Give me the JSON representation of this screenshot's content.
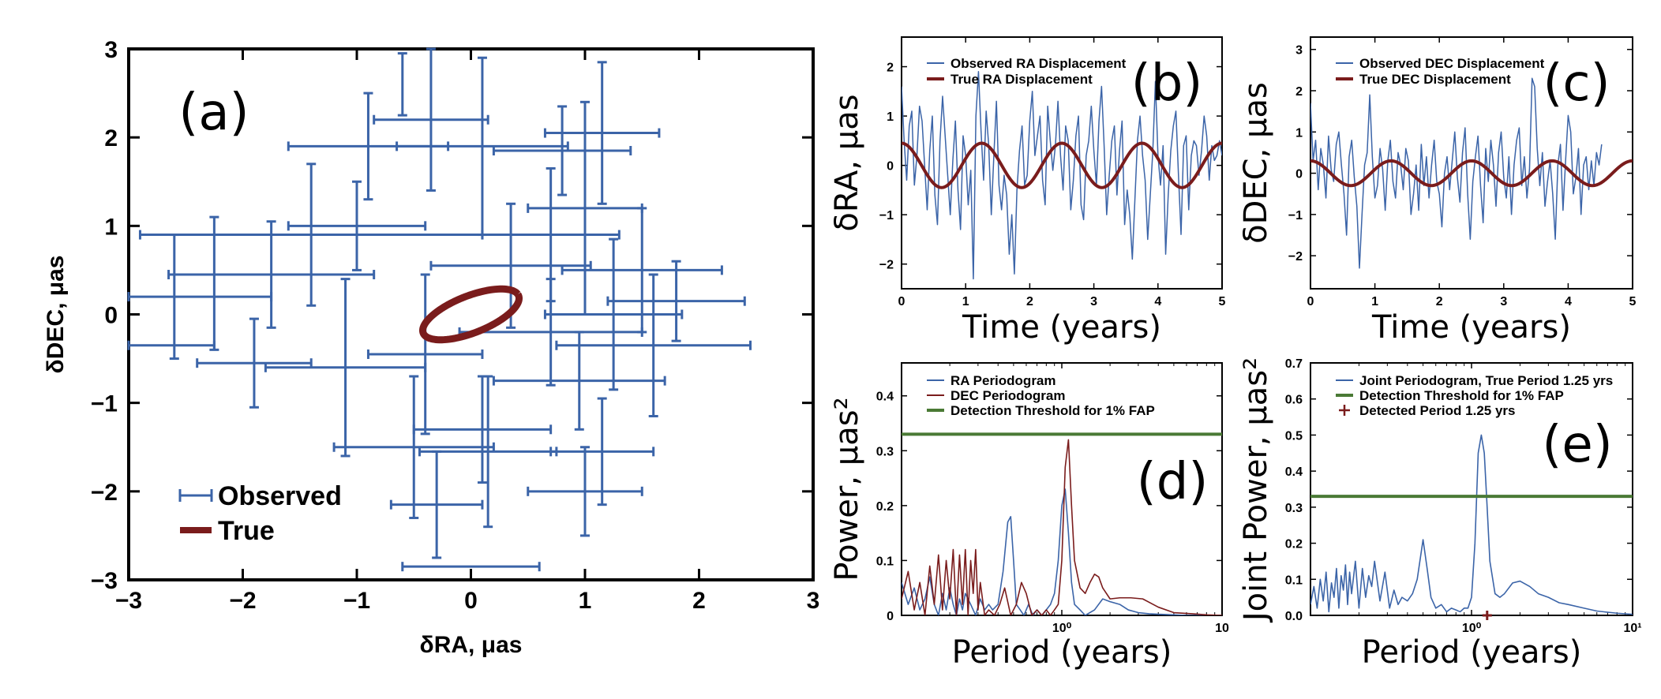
{
  "colors": {
    "observed": "#3b64a8",
    "true": "#7a1c1c",
    "threshold": "#4a7a35",
    "axis": "#000000"
  },
  "chart_data": [
    {
      "id": "a",
      "type": "scatter",
      "tag": "(a)",
      "xlabel": "δRA, μas",
      "ylabel": "δDEC, μas",
      "xlim": [
        -3,
        3
      ],
      "ylim": [
        -3,
        3
      ],
      "xticks": [
        -3,
        -2,
        -1,
        0,
        1,
        2,
        3
      ],
      "yticks": [
        -3,
        -2,
        -1,
        0,
        1,
        2,
        3
      ],
      "xtick_labels": [
        "−3",
        "−2",
        "−1",
        "0",
        "1",
        "2",
        "3"
      ],
      "ytick_labels": [
        "−3",
        "−2",
        "−1",
        "0",
        "1",
        "2",
        "3"
      ],
      "legend": [
        "Observed",
        "True"
      ],
      "true_ellipse": {
        "center": [
          0,
          0
        ],
        "semi_major": 0.47,
        "semi_minor": 0.2,
        "angle_deg": 29
      },
      "observed_points": [
        {
          "x": -2.6,
          "y": 0.2,
          "xerr": 0.85,
          "yerr": 0.7
        },
        {
          "x": -2.75,
          "y": -0.35,
          "xerr": 0.5,
          "yerr": 0.0
        },
        {
          "x": -1.4,
          "y": 0.9,
          "xerr": 1.5,
          "yerr": 0.8
        },
        {
          "x": -1.0,
          "y": 1.0,
          "xerr": 0.6,
          "yerr": 0.5
        },
        {
          "x": -1.75,
          "y": 0.45,
          "xerr": 0.9,
          "yerr": 0.6
        },
        {
          "x": -1.1,
          "y": -0.6,
          "xerr": 0.7,
          "yerr": 1.0
        },
        {
          "x": -0.9,
          "y": 1.9,
          "xerr": 0.7,
          "yerr": 0.6
        },
        {
          "x": -0.6,
          "y": 2.6,
          "xerr": 0.0,
          "yerr": 0.35
        },
        {
          "x": -0.35,
          "y": 2.2,
          "xerr": 0.5,
          "yerr": 0.8
        },
        {
          "x": -0.4,
          "y": -0.45,
          "xerr": 0.5,
          "yerr": 0.9
        },
        {
          "x": -0.5,
          "y": -1.5,
          "xerr": 0.7,
          "yerr": 0.8
        },
        {
          "x": -0.3,
          "y": -2.15,
          "xerr": 0.4,
          "yerr": 0.6
        },
        {
          "x": 0.0,
          "y": -2.85,
          "xerr": 0.6,
          "yerr": 0.0
        },
        {
          "x": 0.1,
          "y": 1.9,
          "xerr": 0.75,
          "yerr": 1.0
        },
        {
          "x": 0.1,
          "y": -1.3,
          "xerr": 0.6,
          "yerr": 0.6
        },
        {
          "x": 0.15,
          "y": -1.55,
          "xerr": 0.6,
          "yerr": 0.85
        },
        {
          "x": 0.35,
          "y": 0.55,
          "xerr": 0.7,
          "yerr": 0.7
        },
        {
          "x": 0.7,
          "y": 0.9,
          "xerr": 0.6,
          "yerr": 0.75
        },
        {
          "x": 0.7,
          "y": -0.2,
          "xerr": 0.8,
          "yerr": 0.6
        },
        {
          "x": 0.8,
          "y": 1.85,
          "xerr": 0.6,
          "yerr": 0.5
        },
        {
          "x": 0.95,
          "y": -0.75,
          "xerr": 0.75,
          "yerr": 0.55
        },
        {
          "x": 1.0,
          "y": 1.2,
          "xerr": 0.5,
          "yerr": 1.2
        },
        {
          "x": 1.0,
          "y": -2.0,
          "xerr": 0.5,
          "yerr": 0.5
        },
        {
          "x": 1.15,
          "y": -1.55,
          "xerr": 0.45,
          "yerr": 0.6
        },
        {
          "x": 1.25,
          "y": 0.0,
          "xerr": 0.6,
          "yerr": 0.85
        },
        {
          "x": 1.15,
          "y": 2.05,
          "xerr": 0.5,
          "yerr": 0.8
        },
        {
          "x": 1.5,
          "y": 0.5,
          "xerr": 0.7,
          "yerr": 0.7
        },
        {
          "x": 1.6,
          "y": -0.35,
          "xerr": 0.85,
          "yerr": 0.8
        },
        {
          "x": 1.8,
          "y": 0.15,
          "xerr": 0.6,
          "yerr": 0.45
        },
        {
          "x": -1.9,
          "y": -0.55,
          "xerr": 0.5,
          "yerr": 0.5
        },
        {
          "x": -2.25,
          "y": 0.35,
          "xerr": 0.0,
          "yerr": 0.75
        }
      ]
    },
    {
      "id": "b",
      "type": "line",
      "tag": "(b)",
      "xlabel": "Time (years)",
      "ylabel": "δRA, μas",
      "xlim": [
        0,
        5
      ],
      "ylim": [
        -2.5,
        2.6
      ],
      "xticks": [
        0,
        1,
        2,
        3,
        4,
        5
      ],
      "yticks": [
        -2,
        -1,
        0,
        1,
        2
      ],
      "xtick_labels": [
        "0",
        "1",
        "2",
        "3",
        "4",
        "5"
      ],
      "ytick_labels": [
        "−2",
        "−1",
        "0",
        "1",
        "2"
      ],
      "series": [
        {
          "name": "Observed RA Displacement",
          "color": "observed",
          "x_start": 0,
          "x_step": 0.04,
          "values": [
            1.6,
            0.5,
            -0.3,
            0.8,
            1.1,
            -0.4,
            0.2,
            1.2,
            0.9,
            0.0,
            -0.9,
            0.3,
            1.0,
            -0.6,
            -1.2,
            0.5,
            1.4,
            0.6,
            -0.2,
            -1.0,
            0.1,
            0.9,
            -0.5,
            -1.3,
            0.6,
            0.2,
            -0.8,
            -0.1,
            -2.3,
            1.0,
            1.9,
            0.7,
            -0.3,
            1.1,
            0.4,
            -1.0,
            0.2,
            1.3,
            -0.4,
            -0.9,
            -0.2,
            -0.6,
            -1.8,
            -1.0,
            -2.2,
            -0.5,
            0.3,
            0.8,
            -0.4,
            -0.2,
            0.9,
            1.5,
            0.2,
            0.6,
            1.0,
            -0.3,
            -0.8,
            1.2,
            0.5,
            -0.1,
            0.4,
            1.3,
            0.2,
            -0.5,
            0.8,
            0.5,
            -0.9,
            -0.3,
            0.6,
            1.0,
            -0.8,
            -1.1,
            0.2,
            0.5,
            1.2,
            0.3,
            -0.4,
            0.9,
            1.6,
            0.4,
            -1.0,
            -0.2,
            0.5,
            0.8,
            -0.6,
            0.3,
            0.9,
            -1.2,
            -0.5,
            -1.0,
            -1.9,
            -0.7,
            0.5,
            1.0,
            0.2,
            -0.3,
            -1.5,
            -0.6,
            0.3,
            1.7,
            0.2,
            -0.4,
            0.4,
            -1.8,
            -0.6,
            0.3,
            0.8,
            1.1,
            -0.2,
            -1.4,
            0.4,
            0.6,
            -0.9,
            0.2,
            0.5,
            0.4,
            -0.2,
            0.3,
            1.0,
            0.6,
            -0.3,
            0.4,
            0.1,
            0.2,
            0.5,
            0.2
          ]
        },
        {
          "name": "True RA Displacement",
          "color": "true",
          "amplitude": 0.45,
          "period": 1.25,
          "phase": 1.571
        }
      ]
    },
    {
      "id": "c",
      "type": "line",
      "tag": "(c)",
      "xlabel": "Time (years)",
      "ylabel": "δDEC, μas",
      "xlim": [
        0,
        5
      ],
      "ylim": [
        -2.8,
        3.3
      ],
      "xticks": [
        0,
        1,
        2,
        3,
        4,
        5
      ],
      "yticks": [
        -2,
        -1,
        0,
        1,
        2,
        3
      ],
      "xtick_labels": [
        "0",
        "1",
        "2",
        "3",
        "4",
        "5"
      ],
      "ytick_labels": [
        "−2",
        "−1",
        "0",
        "1",
        "2",
        "3"
      ],
      "series": [
        {
          "name": "Observed DEC Displacement",
          "color": "observed",
          "x_start": 0,
          "x_step": 0.04,
          "values": [
            1.7,
            0.3,
            0.8,
            -0.4,
            0.6,
            0.2,
            -0.6,
            0.9,
            0.1,
            -0.2,
            0.7,
            1.0,
            0.2,
            -0.5,
            -1.5,
            0.4,
            0.8,
            -0.1,
            -0.8,
            -2.3,
            -1.0,
            0.2,
            0.5,
            1.9,
            0.4,
            -0.6,
            -0.3,
            0.6,
            0.1,
            -0.9,
            0.3,
            0.8,
            -0.2,
            -0.6,
            0.5,
            0.2,
            -0.4,
            0.6,
            0.3,
            -1.0,
            -0.5,
            0.2,
            -0.9,
            0.7,
            -0.3,
            0.4,
            -0.6,
            0.2,
            0.8,
            -0.2,
            -0.5,
            -1.3,
            0.0,
            0.4,
            -0.4,
            0.3,
            1.0,
            -0.1,
            -0.7,
            0.5,
            1.1,
            -0.5,
            -1.6,
            -0.2,
            0.4,
            0.9,
            -0.3,
            -1.2,
            0.6,
            -0.2,
            0.8,
            0.2,
            -0.8,
            0.5,
            1.0,
            -0.1,
            -0.6,
            0.4,
            -1.0,
            0.2,
            0.8,
            1.1,
            -0.3,
            0.4,
            -0.6,
            0.1,
            2.3,
            2.1,
            0.6,
            -0.3,
            0.5,
            -0.8,
            -0.2,
            0.3,
            -0.5,
            -1.6,
            0.2,
            0.7,
            -0.9,
            0.3,
            1.4,
            1.0,
            -0.5,
            -0.1,
            0.6,
            -1.0,
            0.2,
            0.4,
            -0.4,
            0.3,
            -0.3,
            0.5,
            0.2,
            0.7
          ]
        },
        {
          "name": "True DEC Displacement",
          "color": "true",
          "amplitude": 0.3,
          "period": 1.25,
          "phase": 1.571
        }
      ]
    },
    {
      "id": "d",
      "type": "line",
      "tag": "(d)",
      "xscale": "log",
      "xlabel": "Period (years)",
      "ylabel": "Power, μas²",
      "xlim": [
        0.1,
        10
      ],
      "ylim": [
        0,
        0.46
      ],
      "xticks": [
        1,
        10
      ],
      "yticks": [
        0,
        0.1,
        0.2,
        0.3,
        0.4
      ],
      "xtick_labels": [
        "10⁰",
        "10"
      ],
      "ytick_labels": [
        "0",
        "0.1",
        "0.2",
        "0.3",
        "0.4"
      ],
      "series": [
        {
          "name": "RA Periodogram",
          "color": "observed",
          "x": [
            0.1,
            0.11,
            0.12,
            0.13,
            0.14,
            0.15,
            0.16,
            0.17,
            0.18,
            0.19,
            0.2,
            0.21,
            0.22,
            0.23,
            0.24,
            0.25,
            0.27,
            0.29,
            0.31,
            0.33,
            0.35,
            0.37,
            0.4,
            0.43,
            0.46,
            0.48,
            0.5,
            0.52,
            0.55,
            0.58,
            0.62,
            0.66,
            0.7,
            0.75,
            0.8,
            0.85,
            0.9,
            0.95,
            1.0,
            1.05,
            1.1,
            1.15,
            1.2,
            1.3,
            1.4,
            1.6,
            1.8,
            2.0,
            2.3,
            2.6,
            3.0,
            3.5,
            4.0,
            5.0,
            6.0,
            8.0,
            10.0
          ],
          "values": [
            0.06,
            0.02,
            0.05,
            0.01,
            0.03,
            0.07,
            0.02,
            0.0,
            0.04,
            0.01,
            0.05,
            0.02,
            0.0,
            0.03,
            0.01,
            0.04,
            0.02,
            0.0,
            0.03,
            0.01,
            0.02,
            0.01,
            0.02,
            0.08,
            0.17,
            0.18,
            0.1,
            0.02,
            0.01,
            0.0,
            0.02,
            0.0,
            0.01,
            0.0,
            0.01,
            0.02,
            0.04,
            0.1,
            0.2,
            0.23,
            0.15,
            0.06,
            0.02,
            0.01,
            0.0,
            0.01,
            0.03,
            0.025,
            0.02,
            0.01,
            0.005,
            0.003,
            0.002,
            0.001,
            0.0,
            0.0,
            0.0
          ]
        },
        {
          "name": "DEC Periodogram",
          "color": "true",
          "x": [
            0.1,
            0.11,
            0.12,
            0.13,
            0.14,
            0.15,
            0.16,
            0.17,
            0.18,
            0.19,
            0.2,
            0.21,
            0.22,
            0.23,
            0.24,
            0.25,
            0.26,
            0.27,
            0.28,
            0.29,
            0.3,
            0.31,
            0.33,
            0.35,
            0.38,
            0.41,
            0.44,
            0.48,
            0.52,
            0.56,
            0.6,
            0.65,
            0.7,
            0.75,
            0.8,
            0.85,
            0.9,
            0.95,
            1.0,
            1.05,
            1.1,
            1.15,
            1.2,
            1.3,
            1.4,
            1.5,
            1.6,
            1.7,
            1.8,
            2.0,
            2.3,
            2.7,
            3.2,
            4.0,
            5.0,
            6.5,
            8.0,
            10.0
          ],
          "values": [
            0.03,
            0.08,
            0.01,
            0.06,
            0.0,
            0.09,
            0.02,
            0.11,
            0.01,
            0.1,
            0.03,
            0.12,
            0.0,
            0.11,
            0.02,
            0.12,
            0.0,
            0.1,
            0.04,
            0.12,
            0.01,
            0.06,
            0.0,
            0.01,
            0.0,
            0.02,
            0.05,
            0.0,
            0.02,
            0.06,
            0.04,
            0.0,
            0.01,
            0.0,
            0.01,
            0.0,
            0.01,
            0.02,
            0.1,
            0.27,
            0.32,
            0.2,
            0.1,
            0.05,
            0.04,
            0.06,
            0.075,
            0.07,
            0.05,
            0.03,
            0.032,
            0.032,
            0.03,
            0.015,
            0.005,
            0.003,
            0.001,
            0.0
          ]
        },
        {
          "name": "Detection Threshold for 1% FAP",
          "color": "threshold",
          "constant": 0.33
        }
      ]
    },
    {
      "id": "e",
      "type": "line",
      "tag": "(e)",
      "xscale": "log",
      "xlabel": "Period (years)",
      "ylabel": "Joint Power, μas²",
      "xlim": [
        0.1,
        10
      ],
      "ylim": [
        0,
        0.7
      ],
      "xticks": [
        1,
        10
      ],
      "yticks": [
        0,
        0.1,
        0.2,
        0.3,
        0.4,
        0.5,
        0.6,
        0.7
      ],
      "xtick_labels": [
        "10⁰",
        "10¹"
      ],
      "ytick_labels": [
        "0.0",
        "0.1",
        "0.2",
        "0.3",
        "0.4",
        "0.5",
        "0.6",
        "0.7"
      ],
      "series": [
        {
          "name": "Joint Periodogram, True Period 1.25 yrs",
          "color": "observed",
          "x": [
            0.1,
            0.105,
            0.11,
            0.115,
            0.12,
            0.125,
            0.13,
            0.135,
            0.14,
            0.145,
            0.15,
            0.155,
            0.16,
            0.165,
            0.17,
            0.175,
            0.18,
            0.19,
            0.2,
            0.21,
            0.22,
            0.23,
            0.24,
            0.25,
            0.27,
            0.29,
            0.31,
            0.33,
            0.35,
            0.37,
            0.4,
            0.43,
            0.46,
            0.5,
            0.53,
            0.56,
            0.6,
            0.65,
            0.7,
            0.75,
            0.8,
            0.85,
            0.9,
            0.95,
            1.0,
            1.05,
            1.1,
            1.15,
            1.2,
            1.25,
            1.3,
            1.4,
            1.5,
            1.6,
            1.8,
            2.0,
            2.3,
            2.6,
            3.0,
            3.5,
            4.0,
            5.0,
            6.0,
            8.0,
            10.0
          ],
          "values": [
            0.03,
            0.08,
            0.02,
            0.1,
            0.04,
            0.12,
            0.01,
            0.09,
            0.05,
            0.13,
            0.02,
            0.11,
            0.07,
            0.14,
            0.03,
            0.12,
            0.06,
            0.15,
            0.02,
            0.13,
            0.05,
            0.11,
            0.08,
            0.15,
            0.04,
            0.12,
            0.02,
            0.07,
            0.03,
            0.05,
            0.04,
            0.06,
            0.1,
            0.21,
            0.13,
            0.05,
            0.02,
            0.03,
            0.01,
            0.02,
            0.015,
            0.01,
            0.02,
            0.02,
            0.05,
            0.2,
            0.45,
            0.5,
            0.45,
            0.3,
            0.15,
            0.06,
            0.05,
            0.06,
            0.09,
            0.095,
            0.08,
            0.06,
            0.05,
            0.035,
            0.03,
            0.02,
            0.012,
            0.006,
            0.003
          ]
        },
        {
          "name": "Detection Threshold for 1% FAP",
          "color": "threshold",
          "constant": 0.33
        },
        {
          "name": "Detected Period 1.25 yrs",
          "color": "true",
          "marker": "+",
          "point": [
            1.25,
            0
          ]
        }
      ]
    }
  ]
}
